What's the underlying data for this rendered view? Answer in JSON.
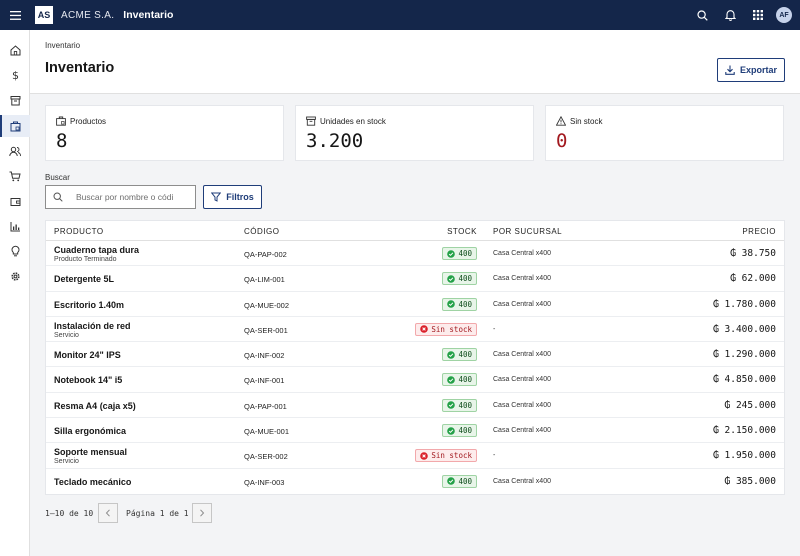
{
  "header": {
    "logo": "AS",
    "company": "ACME S.A.",
    "app_title": "Inventario",
    "user_initials": "AF",
    "icons": [
      "menu-icon",
      "search-icon",
      "bell-icon",
      "grid-icon"
    ]
  },
  "sidebar": {
    "items": [
      {
        "icon": "home-icon",
        "active": false
      },
      {
        "icon": "dollar-icon",
        "active": false
      },
      {
        "icon": "archive-icon",
        "active": false
      },
      {
        "icon": "inventory-icon",
        "active": true
      },
      {
        "icon": "users-icon",
        "active": false
      },
      {
        "icon": "cart-icon",
        "active": false
      },
      {
        "icon": "wallet-icon",
        "active": false
      },
      {
        "icon": "chart-icon",
        "active": false
      },
      {
        "icon": "lightbulb-icon",
        "active": false
      },
      {
        "icon": "gear-icon",
        "active": false
      }
    ]
  },
  "page": {
    "breadcrumb": "Inventario",
    "title": "Inventario",
    "export_label": "Exportar"
  },
  "kpis": [
    {
      "label": "Productos",
      "value": "8",
      "icon": "briefcase-icon"
    },
    {
      "label": "Unidades en stock",
      "value": "3.200",
      "icon": "archive-icon"
    },
    {
      "label": "Sin stock",
      "value": "0",
      "icon": "warning-icon"
    }
  ],
  "search": {
    "label": "Buscar",
    "placeholder": "Buscar por nombre o códi",
    "value": "",
    "filters_label": "Filtros"
  },
  "table": {
    "columns": [
      "PRODUCTO",
      "CÓDIGO",
      "STOCK",
      "POR SUCURSAL",
      "PRECIO"
    ],
    "rows": [
      {
        "name": "Cuaderno tapa dura",
        "sub": "Producto Terminado",
        "code": "QA-PAP-002",
        "stock": "400",
        "status": "ok",
        "branch": "Casa Central x400",
        "price": "₲ 38.750"
      },
      {
        "name": "Detergente 5L",
        "sub": "",
        "code": "QA-LIM-001",
        "stock": "400",
        "status": "ok",
        "branch": "Casa Central x400",
        "price": "₲ 62.000"
      },
      {
        "name": "Escritorio 1.40m",
        "sub": "",
        "code": "QA-MUE-002",
        "stock": "400",
        "status": "ok",
        "branch": "Casa Central x400",
        "price": "₲ 1.780.000"
      },
      {
        "name": "Instalación de red",
        "sub": "Servicio",
        "code": "QA-SER-001",
        "stock": "Sin stock",
        "status": "out",
        "branch": "-",
        "price": "₲ 3.400.000"
      },
      {
        "name": "Monitor 24\" IPS",
        "sub": "",
        "code": "QA-INF-002",
        "stock": "400",
        "status": "ok",
        "branch": "Casa Central x400",
        "price": "₲ 1.290.000"
      },
      {
        "name": "Notebook 14\" i5",
        "sub": "",
        "code": "QA-INF-001",
        "stock": "400",
        "status": "ok",
        "branch": "Casa Central x400",
        "price": "₲ 4.850.000"
      },
      {
        "name": "Resma A4 (caja x5)",
        "sub": "",
        "code": "QA-PAP-001",
        "stock": "400",
        "status": "ok",
        "branch": "Casa Central x400",
        "price": "₲ 245.000"
      },
      {
        "name": "Silla ergonómica",
        "sub": "",
        "code": "QA-MUE-001",
        "stock": "400",
        "status": "ok",
        "branch": "Casa Central x400",
        "price": "₲ 2.150.000"
      },
      {
        "name": "Soporte mensual",
        "sub": "Servicio",
        "code": "QA-SER-002",
        "stock": "Sin stock",
        "status": "out",
        "branch": "-",
        "price": "₲ 1.950.000"
      },
      {
        "name": "Teclado mecánico",
        "sub": "",
        "code": "QA-INF-003",
        "stock": "400",
        "status": "ok",
        "branch": "Casa Central x400",
        "price": "₲ 385.000"
      }
    ]
  },
  "pagination": {
    "range": "1–10 de 10",
    "page_label": "Página 1 de 1"
  }
}
